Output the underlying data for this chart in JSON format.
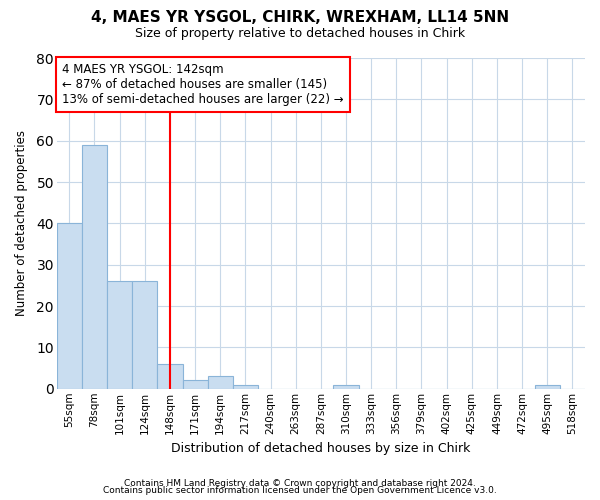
{
  "title": "4, MAES YR YSGOL, CHIRK, WREXHAM, LL14 5NN",
  "subtitle": "Size of property relative to detached houses in Chirk",
  "xlabel": "Distribution of detached houses by size in Chirk",
  "ylabel": "Number of detached properties",
  "bar_labels": [
    "55sqm",
    "78sqm",
    "101sqm",
    "124sqm",
    "148sqm",
    "171sqm",
    "194sqm",
    "217sqm",
    "240sqm",
    "263sqm",
    "287sqm",
    "310sqm",
    "333sqm",
    "356sqm",
    "379sqm",
    "402sqm",
    "425sqm",
    "449sqm",
    "472sqm",
    "495sqm",
    "518sqm"
  ],
  "bar_values": [
    40,
    59,
    26,
    26,
    6,
    2,
    3,
    1,
    0,
    0,
    0,
    1,
    0,
    0,
    0,
    0,
    0,
    0,
    0,
    1,
    0
  ],
  "bar_color": "#c9ddf0",
  "bar_edge_color": "#8ab4d8",
  "figure_bg_color": "#ffffff",
  "plot_bg_color": "#ffffff",
  "grid_color": "#c8d8e8",
  "vline_x_index": 4,
  "vline_color": "red",
  "annotation_text": "4 MAES YR YSGOL: 142sqm\n← 87% of detached houses are smaller (145)\n13% of semi-detached houses are larger (22) →",
  "annotation_box_color": "white",
  "annotation_box_edge": "red",
  "ylim": [
    0,
    80
  ],
  "yticks": [
    0,
    10,
    20,
    30,
    40,
    50,
    60,
    70,
    80
  ],
  "footer_line1": "Contains HM Land Registry data © Crown copyright and database right 2024.",
  "footer_line2": "Contains public sector information licensed under the Open Government Licence v3.0."
}
